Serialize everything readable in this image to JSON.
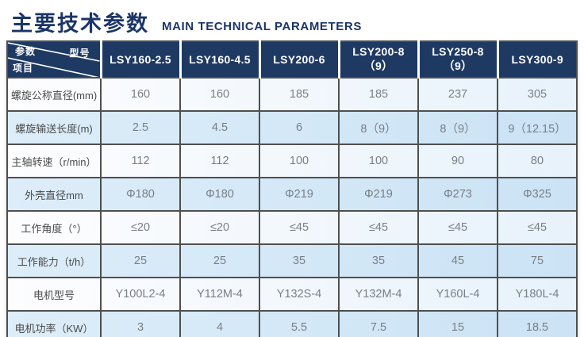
{
  "page": {
    "title_zh": "主要技术参数",
    "title_en": "MAIN TECHNICAL PARAMETERS"
  },
  "table": {
    "corner": {
      "param_label": "参数",
      "model_label": "型号",
      "item_label": "项目"
    },
    "columns": [
      "LSY160-2.5",
      "LSY160-4.5",
      "LSY200-6",
      "LSY200-8（9）",
      "LSY250-8（9）",
      "LSY300-9"
    ],
    "rows": [
      {
        "label": "螺旋公称直径(mm)",
        "values": [
          "160",
          "160",
          "185",
          "185",
          "237",
          "305"
        ]
      },
      {
        "label": "螺旋输送长度(m)",
        "values": [
          "2.5",
          "4.5",
          "6",
          "8（9）",
          "8（9）",
          "9（12.15）"
        ]
      },
      {
        "label": "主轴转速（r/min）",
        "values": [
          "112",
          "112",
          "100",
          "100",
          "90",
          "80"
        ]
      },
      {
        "label": "外壳直径mm",
        "values": [
          "Φ180",
          "Φ180",
          "Φ219",
          "Φ219",
          "Φ273",
          "Φ325"
        ]
      },
      {
        "label": "工作角度（°）",
        "values": [
          "≤20",
          "≤20",
          "≤45",
          "≤45",
          "≤45",
          "≤45"
        ]
      },
      {
        "label": "工作能力（t/h）",
        "values": [
          "25",
          "25",
          "35",
          "35",
          "45",
          "75"
        ]
      },
      {
        "label": "电机型号",
        "values": [
          "Y100L2-4",
          "Y112M-4",
          "Y132S-4",
          "Y132M-4",
          "Y160L-4",
          "Y180L-4"
        ]
      },
      {
        "label": "电机功率（KW）",
        "values": [
          "3",
          "4",
          "5.5",
          "7.5",
          "15",
          "18.5"
        ]
      }
    ],
    "colors": {
      "header_bg": "#1e3a63",
      "title_color": "#1b3567",
      "border": "#4f4f4f",
      "row_light_b": "#e7f2fb",
      "row_dark_b": "#cbe3f5",
      "value_color": "#7a7f85",
      "label_color": "#4a4a4a"
    }
  }
}
